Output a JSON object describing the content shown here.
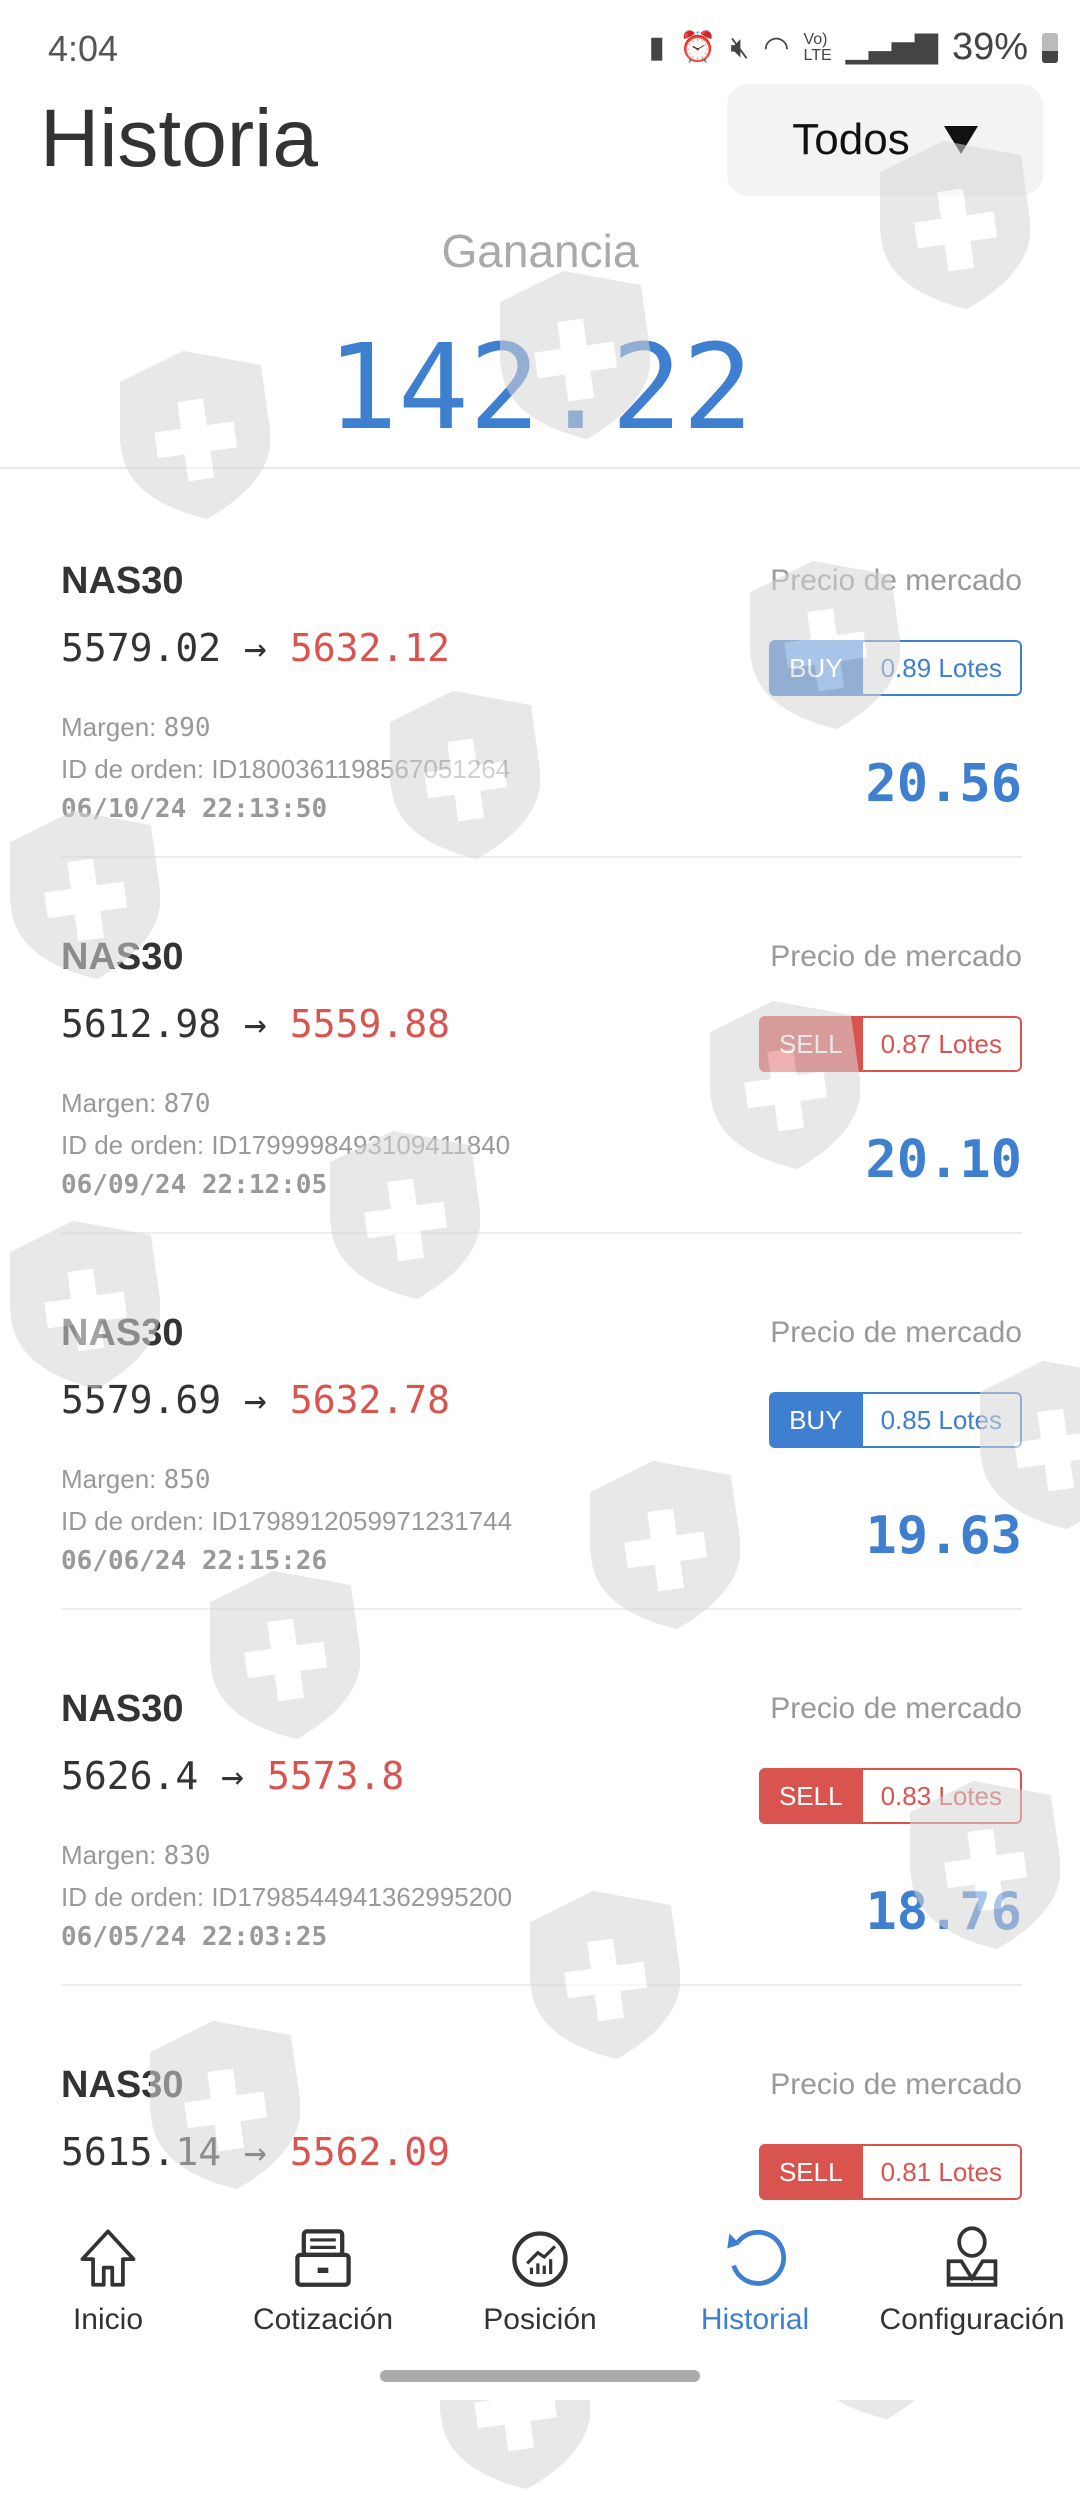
{
  "status_bar": {
    "time": "4:04",
    "battery": "39%"
  },
  "header": {
    "title": "Historia",
    "filter": "Todos"
  },
  "summary": {
    "label": "Ganancia",
    "value": "142.22"
  },
  "colors": {
    "accent": "#3f7fd0",
    "buy": "#3f7fd0",
    "sell": "#d9534f"
  },
  "orders": [
    {
      "symbol": "NAS30",
      "open": "5579.02",
      "arrow": "→",
      "close": "5632.12",
      "margin_label": "Margen:",
      "margin": "890",
      "id_label": "ID de orden:",
      "id": "ID1800361198567051264",
      "datetime": "06/10/24 22:13:50",
      "market_label": "Precio de mercado",
      "side": "BUY",
      "lots": "0.89 Lotes",
      "profit": "20.56"
    },
    {
      "symbol": "NAS30",
      "open": "5612.98",
      "arrow": "→",
      "close": "5559.88",
      "margin_label": "Margen:",
      "margin": "870",
      "id_label": "ID de orden:",
      "id": "ID1799998493109411840",
      "datetime": "06/09/24 22:12:05",
      "market_label": "Precio de mercado",
      "side": "SELL",
      "lots": "0.87 Lotes",
      "profit": "20.10"
    },
    {
      "symbol": "NAS30",
      "open": "5579.69",
      "arrow": "→",
      "close": "5632.78",
      "margin_label": "Margen:",
      "margin": "850",
      "id_label": "ID de orden:",
      "id": "ID1798912059971231744",
      "datetime": "06/06/24 22:15:26",
      "market_label": "Precio de mercado",
      "side": "BUY",
      "lots": "0.85 Lotes",
      "profit": "19.63"
    },
    {
      "symbol": "NAS30",
      "open": "5626.4",
      "arrow": "→",
      "close": "5573.8",
      "margin_label": "Margen:",
      "margin": "830",
      "id_label": "ID de orden:",
      "id": "ID1798544941362995200",
      "datetime": "06/05/24 22:03:25",
      "market_label": "Precio de mercado",
      "side": "SELL",
      "lots": "0.83 Lotes",
      "profit": "18.76"
    },
    {
      "symbol": "NAS30",
      "open": "5615.14",
      "arrow": "→",
      "close": "5562.09",
      "margin_label": "",
      "margin": "",
      "id_label": "",
      "id": "",
      "datetime": "",
      "market_label": "Precio de mercado",
      "side": "SELL",
      "lots": "0.81 Lotes",
      "profit": ""
    }
  ],
  "nav": [
    {
      "label": "Inicio",
      "icon": "home-icon"
    },
    {
      "label": "Cotización",
      "icon": "archive-icon"
    },
    {
      "label": "Posición",
      "icon": "chart-circle-icon"
    },
    {
      "label": "Historial",
      "icon": "history-icon",
      "active": true
    },
    {
      "label": "Configuración",
      "icon": "user-icon"
    }
  ]
}
